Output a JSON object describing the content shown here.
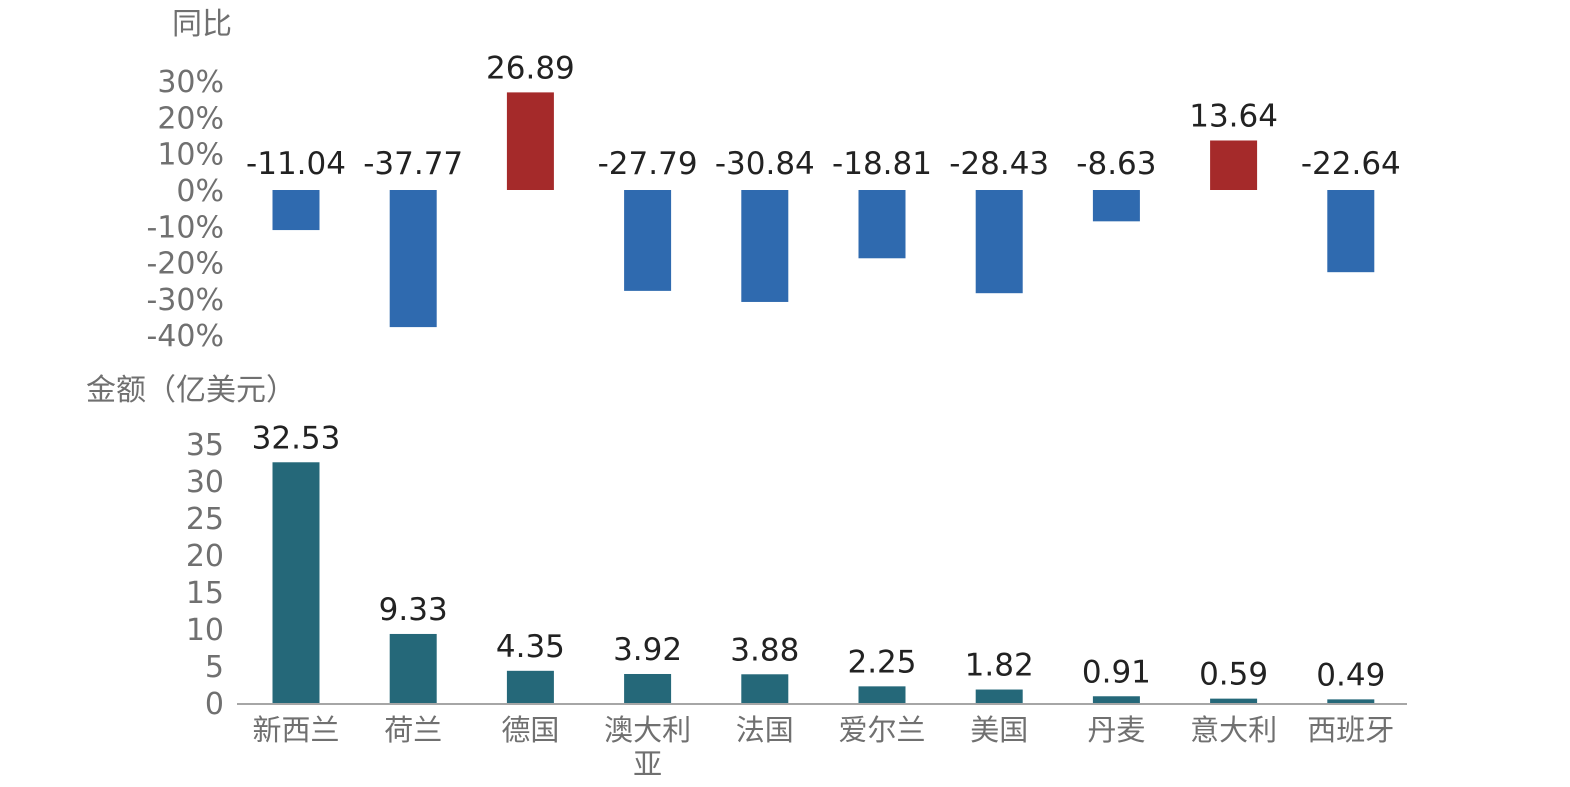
{
  "chart_data": [
    {
      "type": "bar",
      "ylabel": "同比",
      "categories": [
        "新西兰",
        "荷兰",
        "德国",
        "澳大利亚",
        "法国",
        "爱尔兰",
        "美国",
        "丹麦",
        "意大利",
        "西班牙"
      ],
      "values": [
        -11.04,
        -37.77,
        26.89,
        -27.79,
        -30.84,
        -18.81,
        -28.43,
        -8.63,
        13.64,
        -22.64
      ],
      "data_labels": [
        "-11.04",
        "-37.77",
        "26.89",
        "-27.79",
        "-30.84",
        "-18.81",
        "-28.43",
        "-8.63",
        "13.64",
        "-22.64"
      ],
      "yticks": [
        "30%",
        "20%",
        "10%",
        "0%",
        "-10%",
        "-20%",
        "-30%",
        "-40%"
      ],
      "ytick_values": [
        30,
        20,
        10,
        0,
        -10,
        -20,
        -30,
        -40
      ],
      "ylim": [
        -40,
        30
      ],
      "grid": false,
      "colors": {
        "positive": "#A52A2A",
        "negative": "#2F6AAF"
      }
    },
    {
      "type": "bar",
      "ylabel": "金额（亿美元）",
      "categories": [
        "新西兰",
        "荷兰",
        "德国",
        "澳大利亚",
        "法国",
        "爱尔兰",
        "美国",
        "丹麦",
        "意大利",
        "西班牙"
      ],
      "category_lines": [
        [
          "新西兰"
        ],
        [
          "荷兰"
        ],
        [
          "德国"
        ],
        [
          "澳大利",
          "亚"
        ],
        [
          "法国"
        ],
        [
          "爱尔兰"
        ],
        [
          "美国"
        ],
        [
          "丹麦"
        ],
        [
          "意大利"
        ],
        [
          "西班牙"
        ]
      ],
      "values": [
        32.53,
        9.33,
        4.35,
        3.92,
        3.88,
        2.25,
        1.82,
        0.91,
        0.59,
        0.49
      ],
      "data_labels": [
        "32.53",
        "9.33",
        "4.35",
        "3.92",
        "3.88",
        "2.25",
        "1.82",
        "0.91",
        "0.59",
        "0.49"
      ],
      "yticks": [
        "35",
        "30",
        "25",
        "20",
        "15",
        "10",
        "5",
        "0"
      ],
      "ytick_values": [
        35,
        30,
        25,
        20,
        15,
        10,
        5,
        0
      ],
      "ylim": [
        0,
        35
      ],
      "grid": false,
      "colors": {
        "bar": "#256879",
        "axis": "#A6A6A6"
      }
    }
  ]
}
